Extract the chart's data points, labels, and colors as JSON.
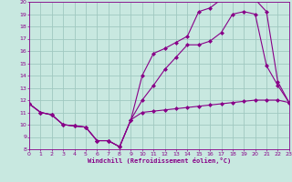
{
  "xlabel": "Windchill (Refroidissement éolien,°C)",
  "bg_color": "#c8e8e0",
  "grid_color": "#a0c8c0",
  "line_color": "#880088",
  "xlim": [
    0,
    23
  ],
  "ylim": [
    8,
    20
  ],
  "xticks": [
    0,
    1,
    2,
    3,
    4,
    5,
    6,
    7,
    8,
    9,
    10,
    11,
    12,
    13,
    14,
    15,
    16,
    17,
    18,
    19,
    20,
    21,
    22,
    23
  ],
  "yticks": [
    8,
    9,
    10,
    11,
    12,
    13,
    14,
    15,
    16,
    17,
    18,
    19,
    20
  ],
  "series": [
    {
      "x": [
        0,
        1,
        2,
        3,
        4,
        5,
        6,
        7,
        8,
        9,
        10,
        11,
        12,
        13,
        14,
        15,
        16,
        17,
        18,
        19,
        20,
        21,
        22,
        23
      ],
      "y": [
        11.7,
        11.0,
        10.8,
        10.0,
        9.9,
        9.8,
        8.7,
        8.7,
        8.2,
        10.4,
        11.0,
        11.1,
        11.2,
        11.3,
        11.4,
        11.5,
        11.6,
        11.7,
        11.8,
        11.9,
        12.0,
        12.0,
        12.0,
        11.8
      ]
    },
    {
      "x": [
        0,
        1,
        2,
        3,
        4,
        5,
        6,
        7,
        8,
        9,
        10,
        11,
        12,
        13,
        14,
        15,
        16,
        17,
        18,
        19,
        20,
        21,
        22,
        23
      ],
      "y": [
        11.7,
        11.0,
        10.8,
        10.0,
        9.9,
        9.8,
        8.7,
        8.7,
        8.2,
        10.4,
        12.0,
        13.2,
        14.5,
        15.5,
        16.5,
        16.5,
        16.8,
        17.5,
        19.0,
        19.2,
        19.0,
        14.8,
        13.2,
        11.8
      ]
    },
    {
      "x": [
        0,
        1,
        2,
        3,
        4,
        5,
        6,
        7,
        8,
        9,
        10,
        11,
        12,
        13,
        14,
        15,
        16,
        17,
        18,
        19,
        20,
        21,
        22,
        23
      ],
      "y": [
        11.7,
        11.0,
        10.8,
        10.0,
        9.9,
        9.8,
        8.7,
        8.7,
        8.2,
        10.4,
        14.0,
        15.8,
        16.2,
        16.7,
        17.2,
        19.2,
        19.5,
        20.2,
        20.5,
        20.3,
        20.2,
        19.2,
        13.5,
        11.8
      ]
    }
  ]
}
